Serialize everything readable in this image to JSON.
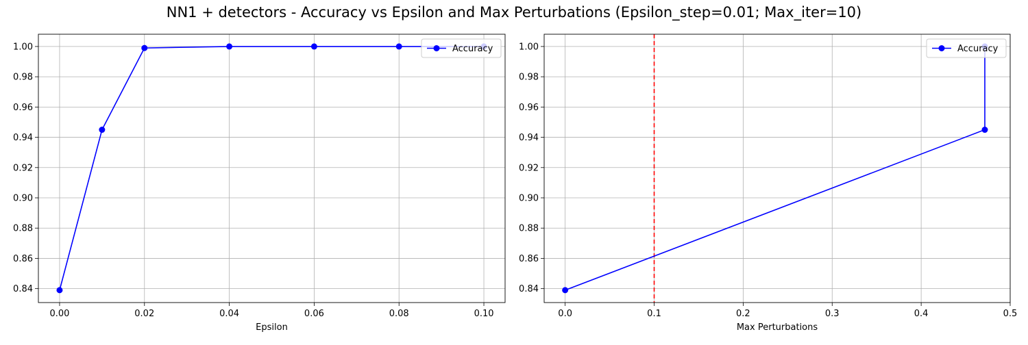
{
  "figure": {
    "title": "NN1 + detectors - Accuracy vs Epsilon and Max Perturbations (Epsilon_step=0.01; Max_iter=10)"
  },
  "chart_data": [
    {
      "type": "line",
      "title": "",
      "xlabel": "Epsilon",
      "ylabel": "",
      "xlim": [
        -0.005,
        0.105
      ],
      "ylim": [
        0.8308,
        1.0081
      ],
      "xticks": [
        0.0,
        0.02,
        0.04,
        0.06,
        0.08,
        0.1
      ],
      "xtick_labels": [
        "0.00",
        "0.02",
        "0.04",
        "0.06",
        "0.08",
        "0.10"
      ],
      "yticks": [
        0.84,
        0.86,
        0.88,
        0.9,
        0.92,
        0.94,
        0.96,
        0.98,
        1.0
      ],
      "ytick_labels": [
        "0.84",
        "0.86",
        "0.88",
        "0.90",
        "0.92",
        "0.94",
        "0.96",
        "0.98",
        "1.00"
      ],
      "grid": true,
      "legend": "top-right",
      "series": [
        {
          "name": "Accuracy",
          "color": "#0000ff",
          "marker": "circle",
          "x": [
            0.0,
            0.01,
            0.02,
            0.04,
            0.06,
            0.08,
            0.1
          ],
          "y": [
            0.839,
            0.945,
            0.999,
            1.0,
            1.0,
            1.0,
            1.0
          ]
        }
      ],
      "vlines": []
    },
    {
      "type": "line",
      "title": "",
      "xlabel": "Max Perturbations",
      "ylabel": "",
      "xlim": [
        -0.0236,
        0.5
      ],
      "ylim": [
        0.8308,
        1.0081
      ],
      "xticks": [
        0.0,
        0.1,
        0.2,
        0.3,
        0.4,
        0.5
      ],
      "xtick_labels": [
        "0.0",
        "0.1",
        "0.2",
        "0.3",
        "0.4",
        "0.5"
      ],
      "yticks": [
        0.84,
        0.86,
        0.88,
        0.9,
        0.92,
        0.94,
        0.96,
        0.98,
        1.0
      ],
      "ytick_labels": [
        "0.84",
        "0.86",
        "0.88",
        "0.90",
        "0.92",
        "0.94",
        "0.96",
        "0.98",
        "1.00"
      ],
      "grid": true,
      "legend": "top-right",
      "series": [
        {
          "name": "Accuracy",
          "color": "#0000ff",
          "marker": "circle",
          "x": [
            0.0,
            0.4715,
            0.4715
          ],
          "y": [
            0.839,
            0.945,
            1.0
          ]
        }
      ],
      "vlines": [
        {
          "x": 0.1,
          "color": "#ff0000",
          "style": "dashed"
        }
      ]
    }
  ]
}
